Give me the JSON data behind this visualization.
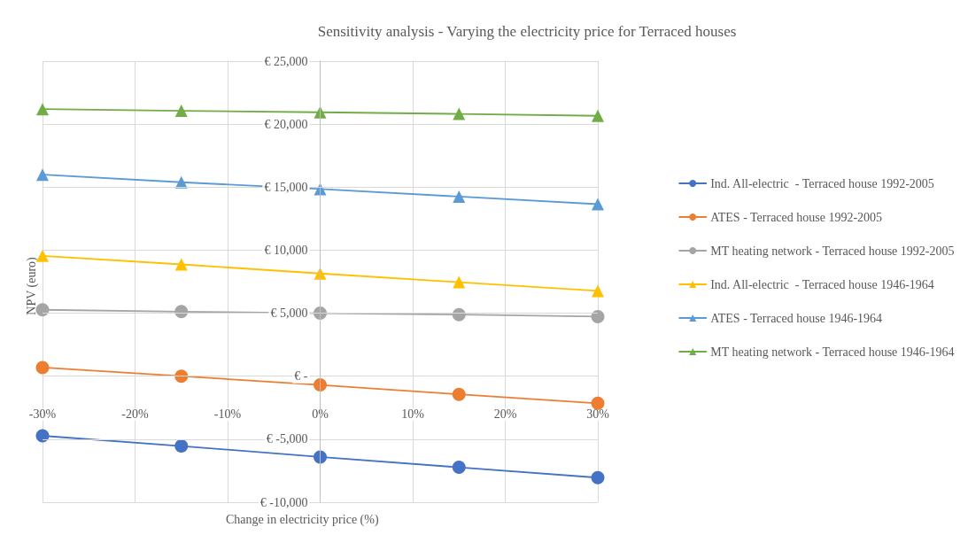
{
  "chart_data": {
    "type": "line",
    "title": "Sensitivity analysis - Varying the electricity price for Terraced houses",
    "xlabel": "Change in electricity price (%)",
    "ylabel": "NPV (euro)",
    "x": [
      -30,
      -15,
      0,
      15,
      30
    ],
    "xlim": [
      -30,
      30
    ],
    "xticks": [
      {
        "value": -30,
        "label": "-30%"
      },
      {
        "value": -20,
        "label": "-20%"
      },
      {
        "value": -10,
        "label": "-10%"
      },
      {
        "value": 0,
        "label": "0%"
      },
      {
        "value": 10,
        "label": "10%"
      },
      {
        "value": 20,
        "label": "20%"
      },
      {
        "value": 30,
        "label": "30%"
      }
    ],
    "ylim": [
      -10000,
      25000
    ],
    "yticks": [
      {
        "value": -10000,
        "label": "€ -10,000"
      },
      {
        "value": -5000,
        "label": "€ -5,000"
      },
      {
        "value": 0,
        "label": "€ -"
      },
      {
        "value": 5000,
        "label": "€ 5,000"
      },
      {
        "value": 10000,
        "label": "€ 10,000"
      },
      {
        "value": 15000,
        "label": "€ 15,000"
      },
      {
        "value": 20000,
        "label": "€ 20,000"
      },
      {
        "value": 25000,
        "label": "€ 25,000"
      }
    ],
    "grid": true,
    "legend": "right",
    "line_style": "solid",
    "series": [
      {
        "name": "Ind. All-electric  - Terraced house 1992-2005",
        "color": "#4472c4",
        "marker": "circle",
        "values": [
          -4730,
          -5540,
          -6410,
          -7230,
          -8050
        ]
      },
      {
        "name": "ATES - Terraced house 1992-2005",
        "color": "#ed7d31",
        "marker": "circle",
        "values": [
          690,
          0,
          -690,
          -1440,
          -2150
        ]
      },
      {
        "name": "MT heating network - Terraced house 1992-2005",
        "color": "#a5a5a5",
        "marker": "circle",
        "values": [
          5270,
          5120,
          5000,
          4890,
          4730
        ]
      },
      {
        "name": "Ind. All-electric  - Terraced house 1946-1964",
        "color": "#ffc000",
        "marker": "triangle",
        "values": [
          9550,
          8870,
          8150,
          7460,
          6770
        ]
      },
      {
        "name": "ATES - Terraced house 1946-1964",
        "color": "#5b9bd5",
        "marker": "triangle",
        "values": [
          15990,
          15390,
          14850,
          14250,
          13650
        ]
      },
      {
        "name": "MT heating network - Terraced house 1946-1964",
        "color": "#70ad47",
        "marker": "triangle",
        "values": [
          21190,
          21060,
          20940,
          20810,
          20660
        ]
      }
    ]
  }
}
